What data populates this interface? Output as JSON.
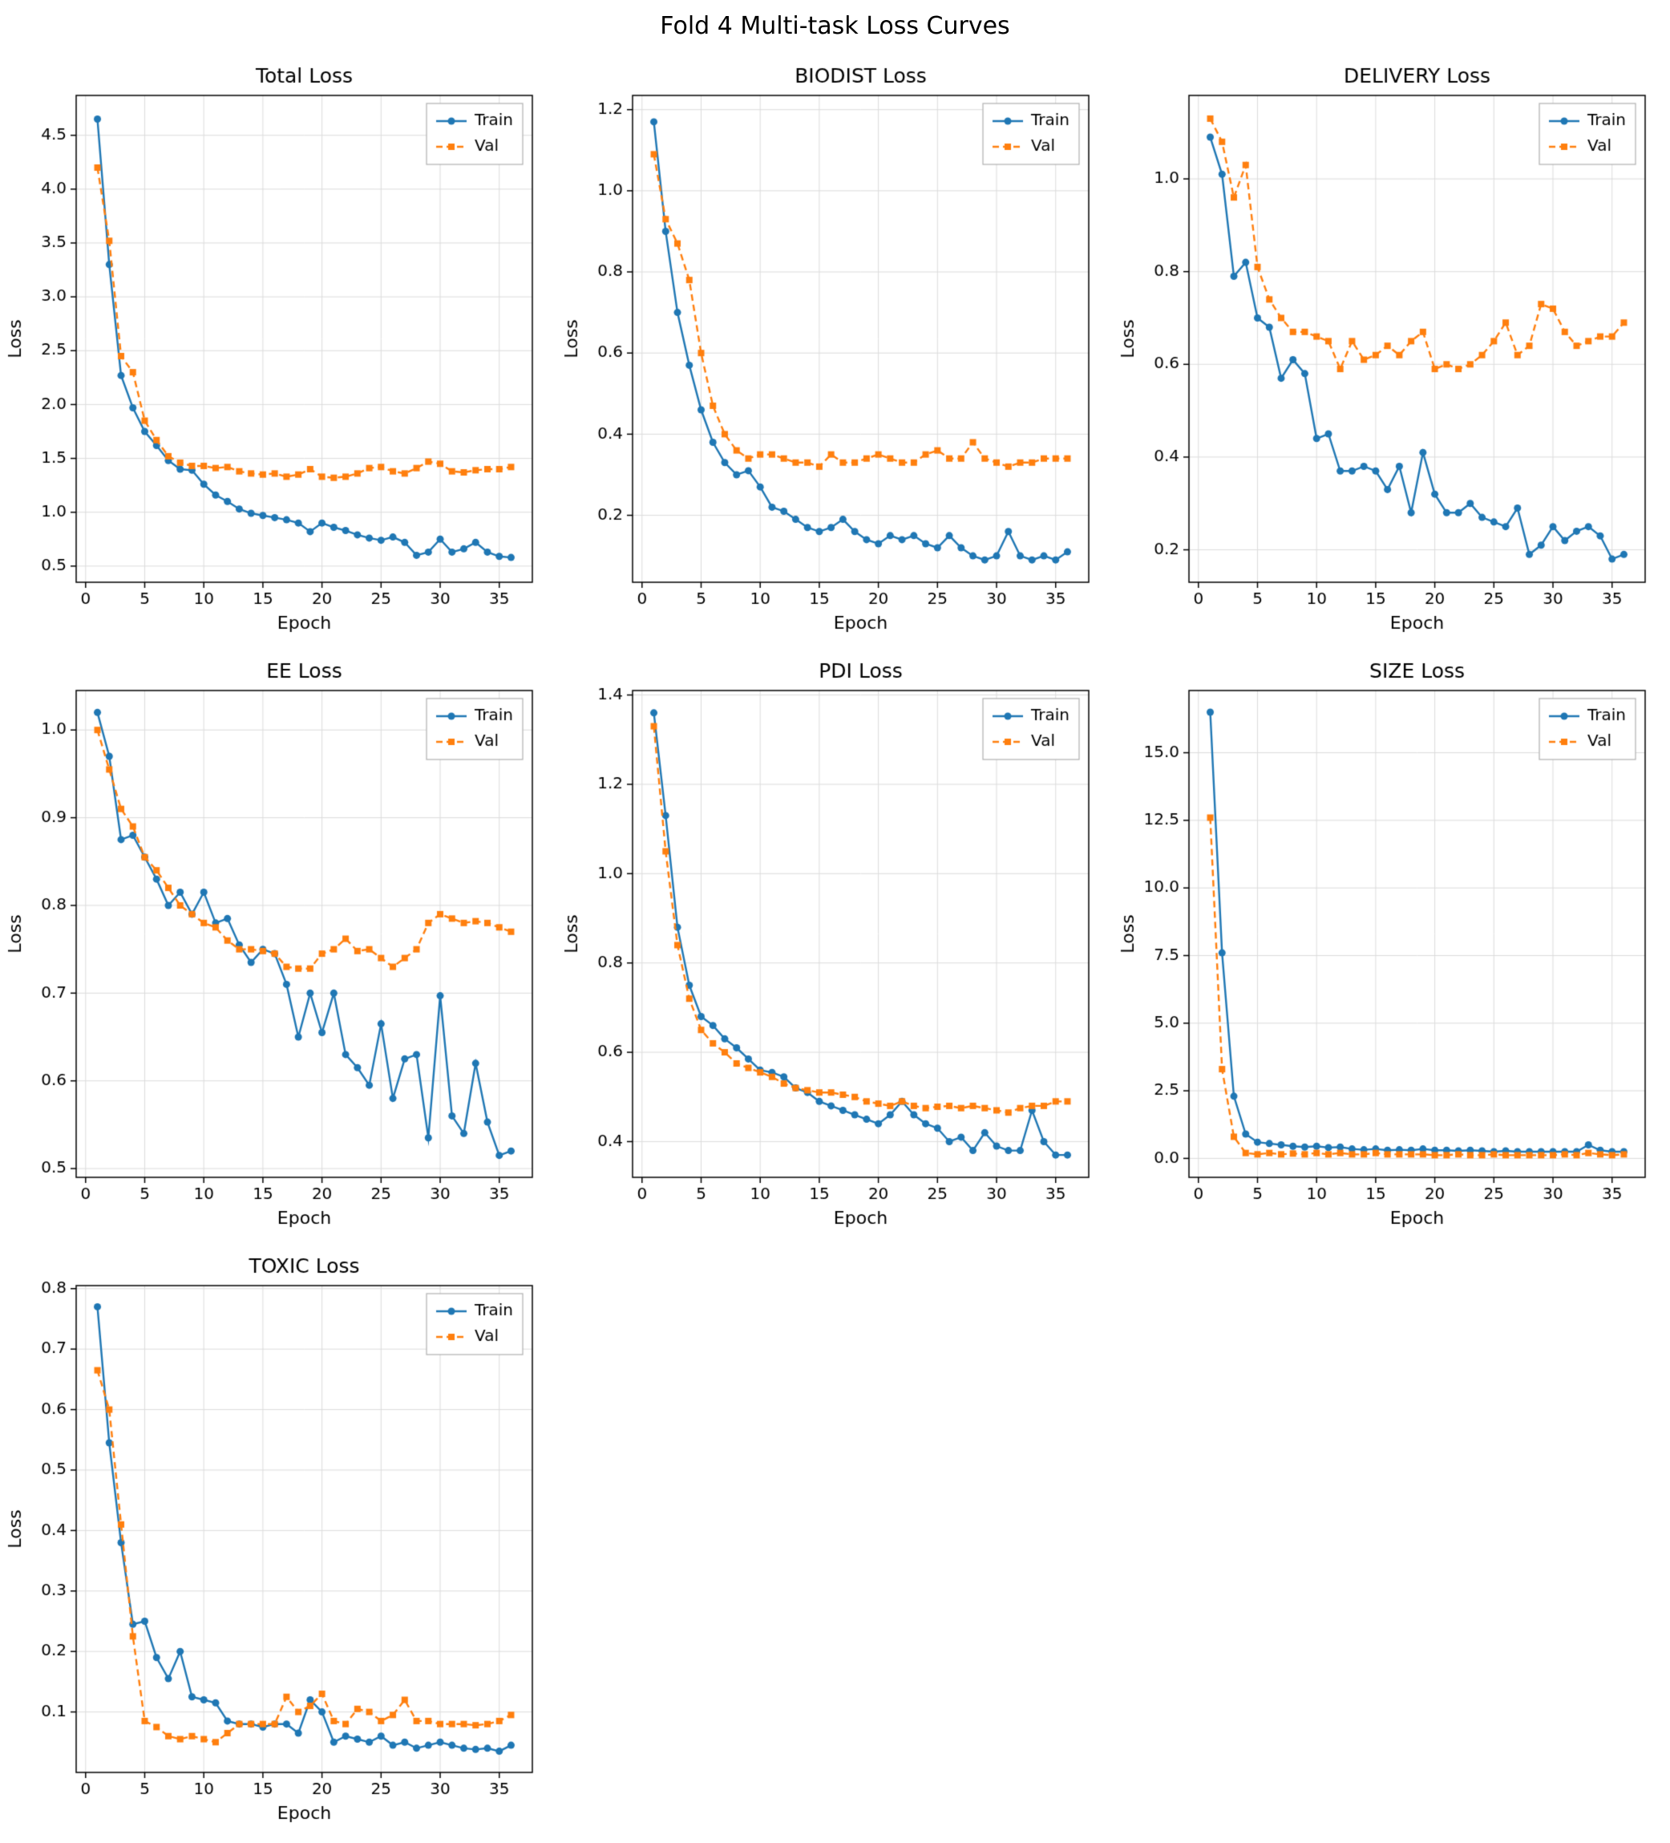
{
  "page_title": "Fold 4 Multi-task Loss Curves",
  "colors": {
    "train": "#1f77b4",
    "val": "#ff7f0e",
    "grid": "#dcdcdc",
    "axes": "#000000",
    "legend_border": "#b0b0b0"
  },
  "epochs": [
    1,
    2,
    3,
    4,
    5,
    6,
    7,
    8,
    9,
    10,
    11,
    12,
    13,
    14,
    15,
    16,
    17,
    18,
    19,
    20,
    21,
    22,
    23,
    24,
    25,
    26,
    27,
    28,
    29,
    30,
    31,
    32,
    33,
    34,
    35,
    36
  ],
  "chart_data": [
    {
      "type": "line",
      "title": "Total Loss",
      "xlabel": "Epoch",
      "ylabel": "Loss",
      "xlim": [
        -0.8,
        37.8
      ],
      "ylim": [
        0.35,
        4.87
      ],
      "xticks": [
        0,
        5,
        10,
        15,
        20,
        25,
        30,
        35
      ],
      "yticks": [
        0.5,
        1.0,
        1.5,
        2.0,
        2.5,
        3.0,
        3.5,
        4.0,
        4.5
      ],
      "grid": true,
      "legend_position": "upper right",
      "series": [
        {
          "name": "Train",
          "color": "#1f77b4",
          "linestyle": "solid",
          "marker": "circle",
          "values": [
            4.65,
            3.3,
            2.27,
            1.97,
            1.75,
            1.62,
            1.48,
            1.4,
            1.39,
            1.26,
            1.16,
            1.1,
            1.03,
            0.99,
            0.97,
            0.95,
            0.93,
            0.9,
            0.82,
            0.9,
            0.86,
            0.83,
            0.79,
            0.76,
            0.74,
            0.77,
            0.72,
            0.6,
            0.63,
            0.75,
            0.63,
            0.66,
            0.72,
            0.63,
            0.59,
            0.58
          ]
        },
        {
          "name": "Val",
          "color": "#ff7f0e",
          "linestyle": "dashed",
          "marker": "square",
          "values": [
            4.2,
            3.52,
            2.45,
            2.3,
            1.85,
            1.67,
            1.52,
            1.46,
            1.43,
            1.43,
            1.41,
            1.42,
            1.38,
            1.36,
            1.35,
            1.36,
            1.33,
            1.35,
            1.4,
            1.33,
            1.32,
            1.33,
            1.36,
            1.41,
            1.42,
            1.38,
            1.36,
            1.41,
            1.47,
            1.45,
            1.38,
            1.37,
            1.39,
            1.4,
            1.4,
            1.42
          ]
        }
      ]
    },
    {
      "type": "line",
      "title": "BIODIST Loss",
      "xlabel": "Epoch",
      "ylabel": "Loss",
      "xlim": [
        -0.8,
        37.8
      ],
      "ylim": [
        0.035,
        1.235
      ],
      "xticks": [
        0,
        5,
        10,
        15,
        20,
        25,
        30,
        35
      ],
      "yticks": [
        0.2,
        0.4,
        0.6,
        0.8,
        1.0,
        1.2
      ],
      "grid": true,
      "legend_position": "upper right",
      "series": [
        {
          "name": "Train",
          "color": "#1f77b4",
          "linestyle": "solid",
          "marker": "circle",
          "values": [
            1.17,
            0.9,
            0.7,
            0.57,
            0.46,
            0.38,
            0.33,
            0.3,
            0.31,
            0.27,
            0.22,
            0.21,
            0.19,
            0.17,
            0.16,
            0.17,
            0.19,
            0.16,
            0.14,
            0.13,
            0.15,
            0.14,
            0.15,
            0.13,
            0.12,
            0.15,
            0.12,
            0.1,
            0.09,
            0.1,
            0.16,
            0.1,
            0.09,
            0.1,
            0.09,
            0.11
          ]
        },
        {
          "name": "Val",
          "color": "#ff7f0e",
          "linestyle": "dashed",
          "marker": "square",
          "values": [
            1.09,
            0.93,
            0.87,
            0.78,
            0.6,
            0.47,
            0.4,
            0.36,
            0.34,
            0.35,
            0.35,
            0.34,
            0.33,
            0.33,
            0.32,
            0.35,
            0.33,
            0.33,
            0.34,
            0.35,
            0.34,
            0.33,
            0.33,
            0.35,
            0.36,
            0.34,
            0.34,
            0.38,
            0.34,
            0.33,
            0.32,
            0.33,
            0.33,
            0.34,
            0.34,
            0.34
          ]
        }
      ]
    },
    {
      "type": "line",
      "title": "DELIVERY Loss",
      "xlabel": "Epoch",
      "ylabel": "Loss",
      "xlim": [
        -0.8,
        37.8
      ],
      "ylim": [
        0.13,
        1.18
      ],
      "xticks": [
        0,
        5,
        10,
        15,
        20,
        25,
        30,
        35
      ],
      "yticks": [
        0.2,
        0.4,
        0.6,
        0.8,
        1.0
      ],
      "grid": true,
      "legend_position": "upper right",
      "series": [
        {
          "name": "Train",
          "color": "#1f77b4",
          "linestyle": "solid",
          "marker": "circle",
          "values": [
            1.09,
            1.01,
            0.79,
            0.82,
            0.7,
            0.68,
            0.57,
            0.61,
            0.58,
            0.44,
            0.45,
            0.37,
            0.37,
            0.38,
            0.37,
            0.33,
            0.38,
            0.28,
            0.41,
            0.32,
            0.28,
            0.28,
            0.3,
            0.27,
            0.26,
            0.25,
            0.29,
            0.19,
            0.21,
            0.25,
            0.22,
            0.24,
            0.25,
            0.23,
            0.18,
            0.19
          ]
        },
        {
          "name": "Val",
          "color": "#ff7f0e",
          "linestyle": "dashed",
          "marker": "square",
          "values": [
            1.13,
            1.08,
            0.96,
            1.03,
            0.81,
            0.74,
            0.7,
            0.67,
            0.67,
            0.66,
            0.65,
            0.59,
            0.65,
            0.61,
            0.62,
            0.64,
            0.62,
            0.65,
            0.67,
            0.59,
            0.6,
            0.59,
            0.6,
            0.62,
            0.65,
            0.69,
            0.62,
            0.64,
            0.73,
            0.72,
            0.67,
            0.64,
            0.65,
            0.66,
            0.66,
            0.69
          ]
        }
      ]
    },
    {
      "type": "line",
      "title": "EE Loss",
      "xlabel": "Epoch",
      "ylabel": "Loss",
      "xlim": [
        -0.8,
        37.8
      ],
      "ylim": [
        0.49,
        1.045
      ],
      "xticks": [
        0,
        5,
        10,
        15,
        20,
        25,
        30,
        35
      ],
      "yticks": [
        0.5,
        0.6,
        0.7,
        0.8,
        0.9,
        1.0
      ],
      "grid": true,
      "legend_position": "upper right",
      "series": [
        {
          "name": "Train",
          "color": "#1f77b4",
          "linestyle": "solid",
          "marker": "circle",
          "values": [
            1.02,
            0.97,
            0.875,
            0.88,
            0.855,
            0.83,
            0.8,
            0.815,
            0.79,
            0.815,
            0.78,
            0.785,
            0.755,
            0.735,
            0.75,
            0.745,
            0.71,
            0.65,
            0.7,
            0.655,
            0.7,
            0.63,
            0.615,
            0.595,
            0.665,
            0.58,
            0.625,
            0.63,
            0.535,
            0.697,
            0.56,
            0.54,
            0.62,
            0.553,
            0.515,
            0.52
          ]
        },
        {
          "name": "Val",
          "color": "#ff7f0e",
          "linestyle": "dashed",
          "marker": "square",
          "values": [
            1.0,
            0.955,
            0.91,
            0.89,
            0.855,
            0.84,
            0.82,
            0.8,
            0.79,
            0.78,
            0.775,
            0.76,
            0.75,
            0.75,
            0.748,
            0.745,
            0.73,
            0.728,
            0.728,
            0.745,
            0.75,
            0.762,
            0.748,
            0.75,
            0.74,
            0.73,
            0.74,
            0.75,
            0.78,
            0.79,
            0.785,
            0.78,
            0.782,
            0.78,
            0.775,
            0.77
          ]
        }
      ]
    },
    {
      "type": "line",
      "title": "PDI Loss",
      "xlabel": "Epoch",
      "ylabel": "Loss",
      "xlim": [
        -0.8,
        37.8
      ],
      "ylim": [
        0.32,
        1.41
      ],
      "xticks": [
        0,
        5,
        10,
        15,
        20,
        25,
        30,
        35
      ],
      "yticks": [
        0.4,
        0.6,
        0.8,
        1.0,
        1.2,
        1.4
      ],
      "grid": true,
      "legend_position": "upper right",
      "series": [
        {
          "name": "Train",
          "color": "#1f77b4",
          "linestyle": "solid",
          "marker": "circle",
          "values": [
            1.36,
            1.13,
            0.88,
            0.75,
            0.68,
            0.66,
            0.63,
            0.61,
            0.585,
            0.56,
            0.555,
            0.545,
            0.52,
            0.51,
            0.49,
            0.48,
            0.47,
            0.46,
            0.45,
            0.44,
            0.46,
            0.49,
            0.46,
            0.44,
            0.43,
            0.4,
            0.41,
            0.38,
            0.42,
            0.39,
            0.38,
            0.38,
            0.47,
            0.4,
            0.37,
            0.37
          ]
        },
        {
          "name": "Val",
          "color": "#ff7f0e",
          "linestyle": "dashed",
          "marker": "square",
          "values": [
            1.33,
            1.05,
            0.84,
            0.72,
            0.65,
            0.62,
            0.6,
            0.575,
            0.565,
            0.555,
            0.545,
            0.53,
            0.52,
            0.515,
            0.51,
            0.51,
            0.505,
            0.5,
            0.49,
            0.485,
            0.48,
            0.49,
            0.48,
            0.475,
            0.478,
            0.48,
            0.475,
            0.48,
            0.475,
            0.47,
            0.465,
            0.475,
            0.48,
            0.48,
            0.49,
            0.49
          ]
        }
      ]
    },
    {
      "type": "line",
      "title": "SIZE Loss",
      "xlabel": "Epoch",
      "ylabel": "Loss",
      "xlim": [
        -0.8,
        37.8
      ],
      "ylim": [
        -0.7,
        17.3
      ],
      "xticks": [
        0,
        5,
        10,
        15,
        20,
        25,
        30,
        35
      ],
      "yticks": [
        0.0,
        2.5,
        5.0,
        7.5,
        10.0,
        12.5,
        15.0
      ],
      "grid": true,
      "legend_position": "upper right",
      "series": [
        {
          "name": "Train",
          "color": "#1f77b4",
          "linestyle": "solid",
          "marker": "circle",
          "values": [
            16.5,
            7.6,
            2.3,
            0.9,
            0.6,
            0.55,
            0.5,
            0.45,
            0.42,
            0.45,
            0.4,
            0.42,
            0.35,
            0.32,
            0.35,
            0.3,
            0.32,
            0.3,
            0.35,
            0.3,
            0.3,
            0.28,
            0.3,
            0.28,
            0.25,
            0.28,
            0.25,
            0.25,
            0.25,
            0.25,
            0.25,
            0.25,
            0.5,
            0.3,
            0.25,
            0.25
          ]
        },
        {
          "name": "Val",
          "color": "#ff7f0e",
          "linestyle": "dashed",
          "marker": "square",
          "values": [
            12.6,
            3.3,
            0.8,
            0.2,
            0.15,
            0.2,
            0.15,
            0.18,
            0.15,
            0.2,
            0.15,
            0.2,
            0.15,
            0.15,
            0.2,
            0.15,
            0.15,
            0.15,
            0.15,
            0.12,
            0.12,
            0.15,
            0.12,
            0.12,
            0.15,
            0.12,
            0.12,
            0.12,
            0.12,
            0.12,
            0.15,
            0.12,
            0.2,
            0.15,
            0.12,
            0.15
          ]
        }
      ]
    },
    {
      "type": "line",
      "title": "TOXIC Loss",
      "xlabel": "Epoch",
      "ylabel": "Loss",
      "xlim": [
        -0.8,
        37.8
      ],
      "ylim": [
        0.0,
        0.805
      ],
      "xticks": [
        0,
        5,
        10,
        15,
        20,
        25,
        30,
        35
      ],
      "yticks": [
        0.1,
        0.2,
        0.3,
        0.4,
        0.5,
        0.6,
        0.7,
        0.8
      ],
      "grid": true,
      "legend_position": "upper right",
      "series": [
        {
          "name": "Train",
          "color": "#1f77b4",
          "linestyle": "solid",
          "marker": "circle",
          "values": [
            0.77,
            0.545,
            0.38,
            0.245,
            0.25,
            0.19,
            0.155,
            0.2,
            0.125,
            0.12,
            0.115,
            0.085,
            0.08,
            0.08,
            0.075,
            0.08,
            0.08,
            0.065,
            0.12,
            0.1,
            0.05,
            0.06,
            0.055,
            0.05,
            0.06,
            0.045,
            0.05,
            0.04,
            0.045,
            0.05,
            0.045,
            0.04,
            0.038,
            0.04,
            0.035,
            0.045
          ]
        },
        {
          "name": "Val",
          "color": "#ff7f0e",
          "linestyle": "dashed",
          "marker": "square",
          "values": [
            0.665,
            0.6,
            0.41,
            0.225,
            0.085,
            0.075,
            0.06,
            0.055,
            0.06,
            0.055,
            0.05,
            0.065,
            0.08,
            0.08,
            0.08,
            0.08,
            0.125,
            0.1,
            0.11,
            0.13,
            0.085,
            0.08,
            0.105,
            0.1,
            0.085,
            0.095,
            0.12,
            0.085,
            0.085,
            0.08,
            0.08,
            0.08,
            0.078,
            0.08,
            0.085,
            0.095
          ]
        }
      ]
    }
  ]
}
